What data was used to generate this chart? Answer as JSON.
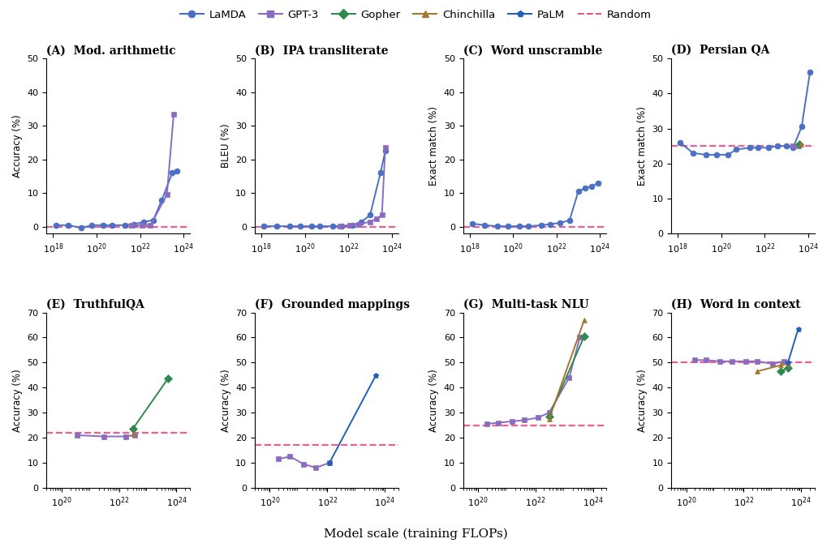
{
  "colors": {
    "LaMDA": "#4a6fc4",
    "GPT-3": "#8a6bbf",
    "Gopher": "#2e8b4e",
    "Chinchilla": "#a07830",
    "PaLM": "#2060b8",
    "Random": "#e8508a"
  },
  "markers": {
    "LaMDA": "o",
    "GPT-3": "s",
    "Gopher": "D",
    "Chinchilla": "^",
    "PaLM": "p"
  },
  "subplots": {
    "A": {
      "title": "(A)  Mod. arithmetic",
      "ylabel": "Accuracy (%)",
      "ylim": [
        -2,
        50
      ],
      "yticks": [
        0,
        10,
        20,
        30,
        40,
        50
      ],
      "xlim": [
        5e+17,
        2e+24
      ],
      "random_y": 0,
      "series": {
        "LaMDA": {
          "x": [
            1.3e+18,
            5e+18,
            2e+19,
            6e+19,
            2e+20,
            5e+20,
            2e+21,
            5e+21,
            1.5e+22,
            4e+22,
            1e+23,
            3e+23,
            5e+23
          ],
          "y": [
            0.5,
            0.5,
            -0.3,
            0.5,
            0.5,
            0.5,
            0.5,
            0.8,
            1.5,
            2.0,
            8.0,
            16.0,
            16.5
          ]
        },
        "GPT-3": {
          "x": [
            4e+21,
            1.2e+22,
            3e+22,
            1.7e+23,
            3.5e+23
          ],
          "y": [
            0.5,
            0.5,
            0.5,
            9.5,
            33.5
          ]
        }
      }
    },
    "B": {
      "title": "(B)  IPA transliterate",
      "ylabel": "BLEU (%)",
      "ylim": [
        -2,
        50
      ],
      "yticks": [
        0,
        10,
        20,
        30,
        40,
        50
      ],
      "xlim": [
        5e+17,
        2e+24
      ],
      "random_y": 0,
      "series": {
        "LaMDA": {
          "x": [
            1.3e+18,
            5e+18,
            2e+19,
            6e+19,
            2e+20,
            5e+20,
            2e+21,
            5e+21,
            1.5e+22,
            4e+22,
            1e+23,
            3e+23,
            5e+23
          ],
          "y": [
            0.2,
            0.2,
            0.2,
            0.2,
            0.2,
            0.2,
            0.2,
            0.2,
            0.5,
            1.5,
            3.5,
            16.0,
            22.5
          ]
        },
        "GPT-3": {
          "x": [
            4e+21,
            1.2e+22,
            3e+22,
            1e+23,
            2e+23,
            3.5e+23,
            5e+23
          ],
          "y": [
            0.3,
            0.5,
            0.8,
            1.5,
            2.5,
            3.5,
            23.5
          ]
        }
      }
    },
    "C": {
      "title": "(C)  Word unscramble",
      "ylabel": "Exact match (%)",
      "ylim": [
        -2,
        50
      ],
      "yticks": [
        0,
        10,
        20,
        30,
        40,
        50
      ],
      "xlim": [
        5e+17,
        2e+24
      ],
      "random_y": 0,
      "series": {
        "LaMDA": {
          "x": [
            1.3e+18,
            5e+18,
            2e+19,
            6e+19,
            2e+20,
            5e+20,
            2e+21,
            5e+21,
            1.5e+22,
            4e+22,
            1e+23,
            2e+23,
            4e+23,
            8e+23
          ],
          "y": [
            1.0,
            0.5,
            0.2,
            0.2,
            0.2,
            0.2,
            0.5,
            0.8,
            1.2,
            2.0,
            10.5,
            11.5,
            12.0,
            13.0
          ]
        }
      }
    },
    "D": {
      "title": "(D)  Persian QA",
      "ylabel": "Exact match (%)",
      "ylim": [
        0,
        50
      ],
      "yticks": [
        0,
        10,
        20,
        30,
        40,
        50
      ],
      "xlim": [
        5e+17,
        2e+24
      ],
      "random_y": 25,
      "series": {
        "LaMDA": {
          "x": [
            1.3e+18,
            5e+18,
            2e+19,
            6e+19,
            2e+20,
            5e+20,
            2e+21,
            5e+21,
            1.5e+22,
            4e+22,
            1e+23,
            2e+23,
            5e+23,
            1.2e+24
          ],
          "y": [
            26.0,
            23.0,
            22.5,
            22.5,
            22.5,
            24.0,
            24.5,
            24.5,
            24.5,
            25.0,
            25.0,
            24.5,
            30.5,
            46.0
          ]
        },
        "GPT-3": {
          "x": [
            2e+23,
            3.5e+23
          ],
          "y": [
            25.0,
            25.0
          ]
        },
        "Gopher": {
          "x": [
            4e+23
          ],
          "y": [
            25.5
          ]
        },
        "Chinchilla": {
          "x": [
            4.5e+23
          ],
          "y": [
            25.5
          ]
        }
      }
    },
    "E": {
      "title": "(E)  TruthfulQA",
      "ylabel": "Accuracy (%)",
      "ylim": [
        0,
        70
      ],
      "yticks": [
        0,
        10,
        20,
        30,
        40,
        50,
        60,
        70
      ],
      "xlim": [
        3e+19,
        3e+24
      ],
      "random_y": 22,
      "series": {
        "GPT-3": {
          "x": [
            3.5e+20,
            3e+21,
            1.7e+22,
            3.5e+22
          ],
          "y": [
            21.0,
            20.5,
            20.5,
            21.0
          ]
        },
        "Gopher": {
          "x": [
            3e+22,
            5e+23
          ],
          "y": [
            23.5,
            43.5
          ]
        },
        "Chinchilla": {
          "x": [
            3e+22
          ],
          "y": [
            21.5
          ]
        }
      }
    },
    "F": {
      "title": "(F)  Grounded mappings",
      "ylabel": "Accuracy (%)",
      "ylim": [
        0,
        70
      ],
      "yticks": [
        0,
        10,
        20,
        30,
        40,
        50,
        60,
        70
      ],
      "xlim": [
        3e+19,
        3e+24
      ],
      "random_y": 17,
      "series": {
        "GPT-3": {
          "x": [
            2e+20,
            5e+20,
            1.5e+21,
            4e+21,
            1.2e+22
          ],
          "y": [
            11.5,
            12.5,
            9.5,
            8.0,
            10.0
          ]
        },
        "PaLM": {
          "x": [
            1.2e+22,
            5e+23
          ],
          "y": [
            10.0,
            45.0
          ]
        }
      }
    },
    "G": {
      "title": "(G)  Multi-task NLU",
      "ylabel": "Accuracy (%)",
      "ylim": [
        0,
        70
      ],
      "yticks": [
        0,
        10,
        20,
        30,
        40,
        50,
        60,
        70
      ],
      "xlim": [
        3e+19,
        3e+24
      ],
      "random_y": 25,
      "series": {
        "GPT-3": {
          "x": [
            2e+20,
            5e+20,
            1.5e+21,
            4e+21,
            1.2e+22,
            3e+22,
            1.5e+23,
            3.5e+23
          ],
          "y": [
            25.5,
            26.0,
            26.5,
            27.0,
            28.0,
            30.0,
            44.0,
            60.0
          ]
        },
        "Gopher": {
          "x": [
            3e+22,
            5e+23
          ],
          "y": [
            28.5,
            60.5
          ]
        },
        "Chinchilla": {
          "x": [
            3e+22,
            5e+23
          ],
          "y": [
            27.5,
            67.0
          ]
        }
      }
    },
    "H": {
      "title": "(H)  Word in context",
      "ylabel": "Accuracy (%)",
      "ylim": [
        0,
        70
      ],
      "yticks": [
        0,
        10,
        20,
        30,
        40,
        50,
        60,
        70
      ],
      "xlim": [
        3e+19,
        3e+24
      ],
      "random_y": 50,
      "series": {
        "GPT-3": {
          "x": [
            2e+20,
            5e+20,
            1.5e+21,
            4e+21,
            1.2e+22,
            3e+22,
            1e+23,
            2.5e+23
          ],
          "y": [
            51.0,
            51.0,
            50.5,
            50.5,
            50.5,
            50.5,
            49.5,
            50.5
          ]
        },
        "Gopher": {
          "x": [
            2e+23,
            3.5e+23
          ],
          "y": [
            46.5,
            48.0
          ]
        },
        "Chinchilla": {
          "x": [
            3e+22,
            2e+23,
            3.5e+23
          ],
          "y": [
            46.5,
            49.0,
            49.5
          ]
        },
        "PaLM": {
          "x": [
            3.5e+23,
            8e+23
          ],
          "y": [
            50.0,
            63.5
          ]
        }
      }
    }
  }
}
